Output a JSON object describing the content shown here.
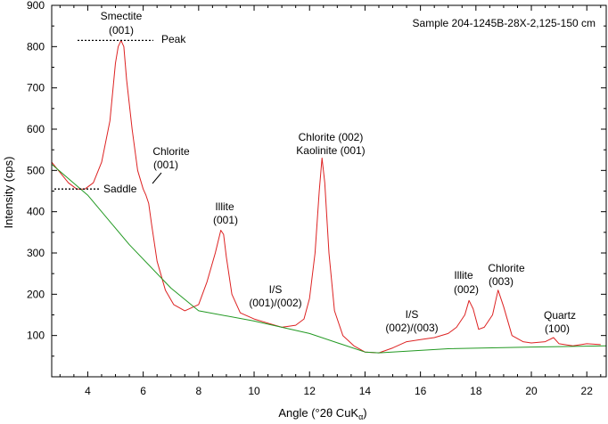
{
  "chart_data": {
    "type": "line",
    "title": "Sample 204-1245B-28X-2,125-150 cm",
    "xlabel_main": "Angle (°2θ CuK",
    "xlabel_sub": "α",
    "xlabel_close": ")",
    "ylabel": "Intensity (cps)",
    "xlim": [
      2.7,
      22.7
    ],
    "ylim": [
      0,
      900
    ],
    "x_ticks": [
      4,
      6,
      8,
      10,
      12,
      14,
      16,
      18,
      20,
      22
    ],
    "y_ticks": [
      100,
      200,
      300,
      400,
      500,
      600,
      700,
      800,
      900
    ],
    "colors": {
      "pattern": "#dd2222",
      "background": "#229922",
      "axes": "#000000"
    },
    "series": [
      {
        "type": "pattern",
        "x": [
          2.7,
          3.0,
          3.3,
          3.6,
          3.9,
          4.2,
          4.5,
          4.8,
          5.0,
          5.1,
          5.2,
          5.3,
          5.4,
          5.6,
          5.8,
          6.0,
          6.1,
          6.2,
          6.3,
          6.5,
          6.8,
          7.1,
          7.5,
          8.0,
          8.3,
          8.6,
          8.8,
          8.9,
          9.0,
          9.2,
          9.5,
          10.0,
          10.5,
          11.0,
          11.5,
          11.8,
          12.0,
          12.2,
          12.35,
          12.45,
          12.55,
          12.7,
          12.9,
          13.2,
          13.6,
          14.0,
          14.5,
          15.0,
          15.5,
          16.0,
          16.5,
          17.0,
          17.3,
          17.6,
          17.75,
          17.9,
          18.1,
          18.3,
          18.6,
          18.8,
          19.0,
          19.3,
          19.7,
          20.0,
          20.5,
          20.8,
          21.0,
          21.5,
          22.0,
          22.5
        ],
        "y": [
          520,
          495,
          470,
          455,
          455,
          470,
          520,
          620,
          760,
          800,
          815,
          800,
          720,
          600,
          500,
          455,
          440,
          420,
          370,
          280,
          210,
          175,
          160,
          175,
          230,
          300,
          355,
          345,
          290,
          200,
          155,
          140,
          130,
          120,
          125,
          140,
          190,
          300,
          450,
          530,
          470,
          300,
          160,
          100,
          75,
          60,
          58,
          70,
          85,
          90,
          95,
          105,
          120,
          150,
          185,
          165,
          115,
          120,
          150,
          210,
          170,
          100,
          85,
          82,
          85,
          95,
          80,
          75,
          80,
          78
        ]
      },
      {
        "type": "background",
        "x": [
          2.7,
          4.0,
          5.5,
          7.0,
          8.0,
          10.0,
          12.0,
          14.0,
          14.5,
          17.0,
          20.0,
          22.7
        ],
        "y": [
          515,
          440,
          320,
          215,
          160,
          135,
          105,
          60,
          58,
          68,
          72,
          75
        ]
      }
    ],
    "annotations": {
      "smectite_1": "Smectite",
      "smectite_2": "(001)",
      "peak": "Peak",
      "saddle": "Saddle",
      "chlorite_a_1": "Chlorite",
      "chlorite_a_2": "(001)",
      "illite_a_1": "Illite",
      "illite_a_2": "(001)",
      "is_a_1": "I/S",
      "is_a_2": "(001)/(002)",
      "chlorite_b_1": "Chlorite (002)",
      "chlorite_b_2": "Kaolinite (001)",
      "is_b_1": "I/S",
      "is_b_2": "(002)/(003)",
      "illite_b_1": "Illite",
      "illite_b_2": "(002)",
      "chlorite_c_1": "Chlorite",
      "chlorite_c_2": "(003)",
      "quartz_1": "Quartz",
      "quartz_2": "(100)"
    },
    "reference_levels": {
      "peak": 815,
      "saddle": 455
    }
  }
}
